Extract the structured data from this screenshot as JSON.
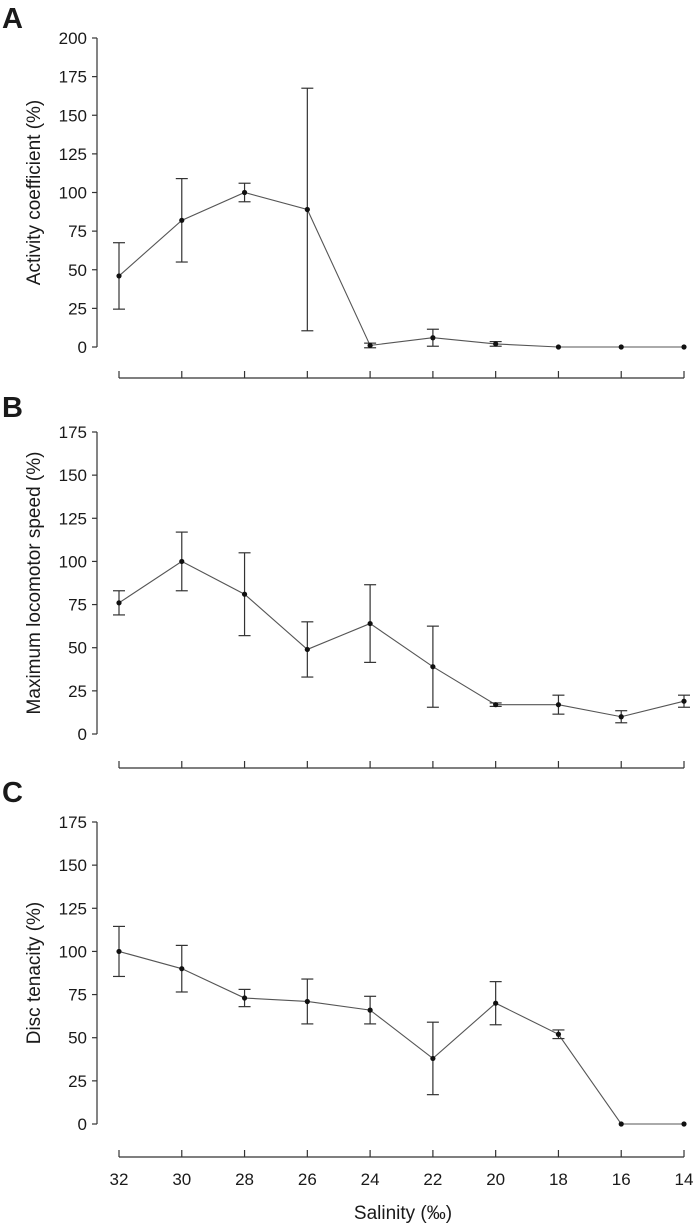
{
  "chart_data": [
    {
      "panel": "A",
      "type": "line",
      "ylabel": "Activity coefficient (%)",
      "xlabel": "",
      "x": [
        32,
        30,
        28,
        26,
        24,
        22,
        20,
        18,
        16,
        14
      ],
      "x_ticklabels": [
        "",
        "",
        "",
        "",
        "",
        "",
        "",
        "",
        "",
        ""
      ],
      "ylim": [
        0,
        200
      ],
      "yticks": [
        0,
        25,
        50,
        75,
        100,
        125,
        150,
        175,
        200
      ],
      "series": [
        {
          "values": [
            46,
            82,
            100,
            89,
            1,
            6,
            2,
            0,
            0,
            0
          ],
          "error": [
            21.5,
            27,
            6,
            78.5,
            1.5,
            5.5,
            1.5,
            0,
            0,
            0
          ]
        }
      ],
      "grid": false
    },
    {
      "panel": "B",
      "type": "line",
      "ylabel": "Maximum locomotor speed (%)",
      "xlabel": "",
      "x": [
        32,
        30,
        28,
        26,
        24,
        22,
        20,
        18,
        16,
        14
      ],
      "x_ticklabels": [
        "",
        "",
        "",
        "",
        "",
        "",
        "",
        "",
        "",
        ""
      ],
      "ylim": [
        0,
        175
      ],
      "yticks": [
        0,
        25,
        50,
        75,
        100,
        125,
        150,
        175
      ],
      "series": [
        {
          "values": [
            76,
            100,
            81,
            49,
            64,
            39,
            17,
            17,
            10,
            19
          ],
          "error": [
            7,
            17,
            24,
            16,
            22.5,
            23.5,
            1,
            5.5,
            3.5,
            3.5
          ]
        }
      ],
      "grid": false
    },
    {
      "panel": "C",
      "type": "line",
      "ylabel": "Disc tenacity (%)",
      "xlabel": "Salinity (‰)",
      "x": [
        32,
        30,
        28,
        26,
        24,
        22,
        20,
        18,
        16,
        14
      ],
      "x_ticklabels": [
        "32",
        "30",
        "28",
        "26",
        "24",
        "22",
        "20",
        "18",
        "16",
        "14"
      ],
      "ylim": [
        0,
        175
      ],
      "yticks": [
        0,
        25,
        50,
        75,
        100,
        125,
        150,
        175
      ],
      "series": [
        {
          "values": [
            100,
            90,
            73,
            71,
            66,
            38,
            70,
            52,
            0,
            0
          ],
          "error": [
            14.5,
            13.5,
            5,
            13,
            8,
            21,
            12.5,
            2.5,
            0,
            0
          ]
        }
      ],
      "grid": false
    }
  ]
}
